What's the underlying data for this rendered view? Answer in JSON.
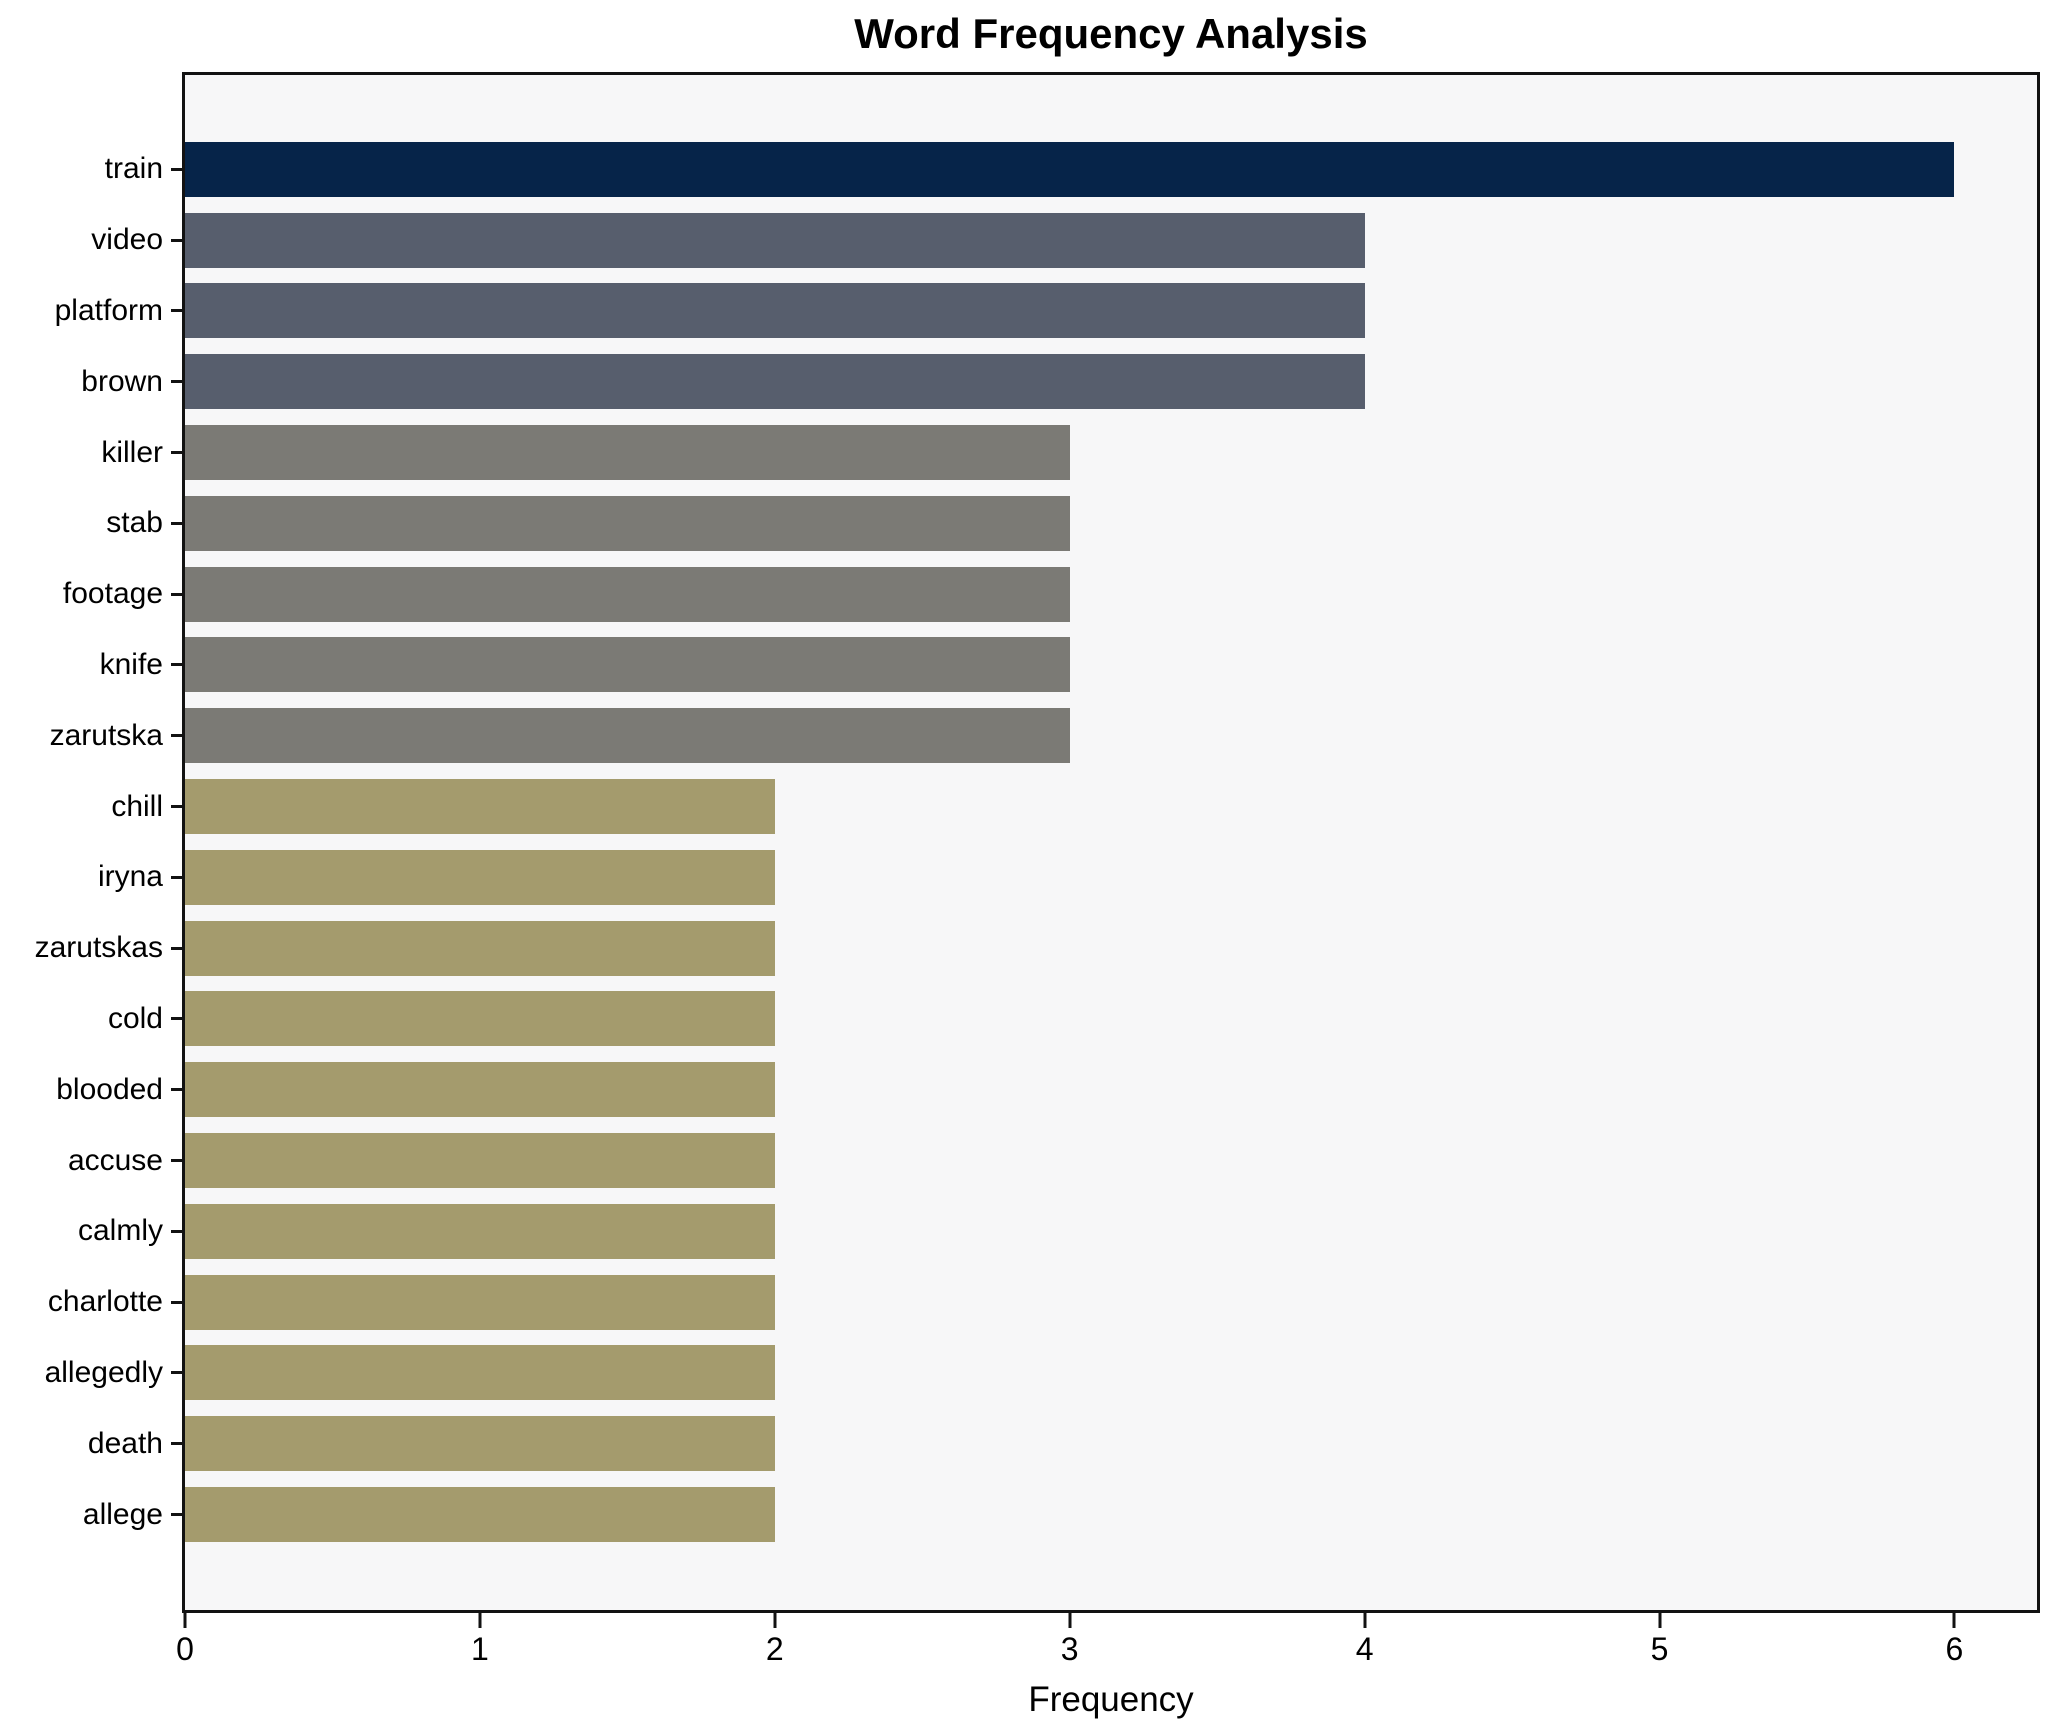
{
  "chart_data": {
    "type": "bar",
    "orientation": "horizontal",
    "title": "Word Frequency Analysis",
    "xlabel": "Frequency",
    "ylabel": "",
    "categories": [
      "train",
      "video",
      "platform",
      "brown",
      "killer",
      "stab",
      "footage",
      "knife",
      "zarutska",
      "chill",
      "iryna",
      "zarutskas",
      "cold",
      "blooded",
      "accuse",
      "calmly",
      "charlotte",
      "allegedly",
      "death",
      "allege"
    ],
    "values": [
      6,
      4,
      4,
      4,
      3,
      3,
      3,
      3,
      3,
      2,
      2,
      2,
      2,
      2,
      2,
      2,
      2,
      2,
      2,
      2
    ],
    "bar_colors": [
      "#062449",
      "#575e6d",
      "#575e6d",
      "#575e6d",
      "#7b7a75",
      "#7b7a75",
      "#7b7a75",
      "#7b7a75",
      "#7b7a75",
      "#a49b6d",
      "#a49b6d",
      "#a49b6d",
      "#a49b6d",
      "#a49b6d",
      "#a49b6d",
      "#a49b6d",
      "#a49b6d",
      "#a49b6d",
      "#a49b6d",
      "#a49b6d"
    ],
    "xticks": [
      0,
      1,
      2,
      3,
      4,
      5,
      6
    ],
    "xlim": [
      0,
      6.28
    ],
    "grid": false,
    "legend": null,
    "plot_background": "#f7f7f8",
    "figure_background": "#ffffff",
    "axis_color": "#121212"
  }
}
